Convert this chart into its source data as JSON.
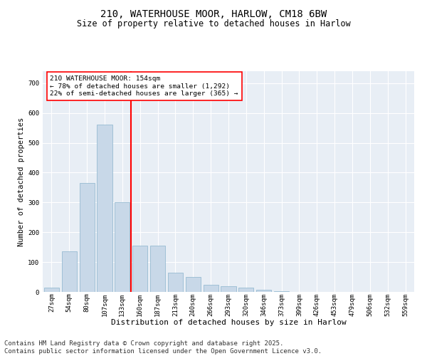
{
  "title_line1": "210, WATERHOUSE MOOR, HARLOW, CM18 6BW",
  "title_line2": "Size of property relative to detached houses in Harlow",
  "xlabel": "Distribution of detached houses by size in Harlow",
  "ylabel": "Number of detached properties",
  "bar_color": "#c8d8e8",
  "bar_edge_color": "#8ab4cc",
  "background_color": "#e8eef5",
  "grid_color": "#ffffff",
  "vline_color": "red",
  "annotation_text": "210 WATERHOUSE MOOR: 154sqm\n← 78% of detached houses are smaller (1,292)\n22% of semi-detached houses are larger (365) →",
  "annotation_box_color": "white",
  "annotation_box_edge": "red",
  "categories": [
    "27sqm",
    "54sqm",
    "80sqm",
    "107sqm",
    "133sqm",
    "160sqm",
    "187sqm",
    "213sqm",
    "240sqm",
    "266sqm",
    "293sqm",
    "320sqm",
    "346sqm",
    "373sqm",
    "399sqm",
    "426sqm",
    "453sqm",
    "479sqm",
    "506sqm",
    "532sqm",
    "559sqm"
  ],
  "values": [
    15,
    135,
    365,
    560,
    300,
    155,
    155,
    65,
    50,
    25,
    20,
    15,
    8,
    3,
    0,
    0,
    0,
    0,
    0,
    0,
    0
  ],
  "ylim": [
    0,
    740
  ],
  "yticks": [
    0,
    100,
    200,
    300,
    400,
    500,
    600,
    700
  ],
  "footnote": "Contains HM Land Registry data © Crown copyright and database right 2025.\nContains public sector information licensed under the Open Government Licence v3.0.",
  "footnote_fontsize": 6.5,
  "title1_fontsize": 10,
  "title2_fontsize": 8.5,
  "xlabel_fontsize": 8,
  "ylabel_fontsize": 7.5,
  "tick_fontsize": 6.5,
  "annot_fontsize": 6.8
}
